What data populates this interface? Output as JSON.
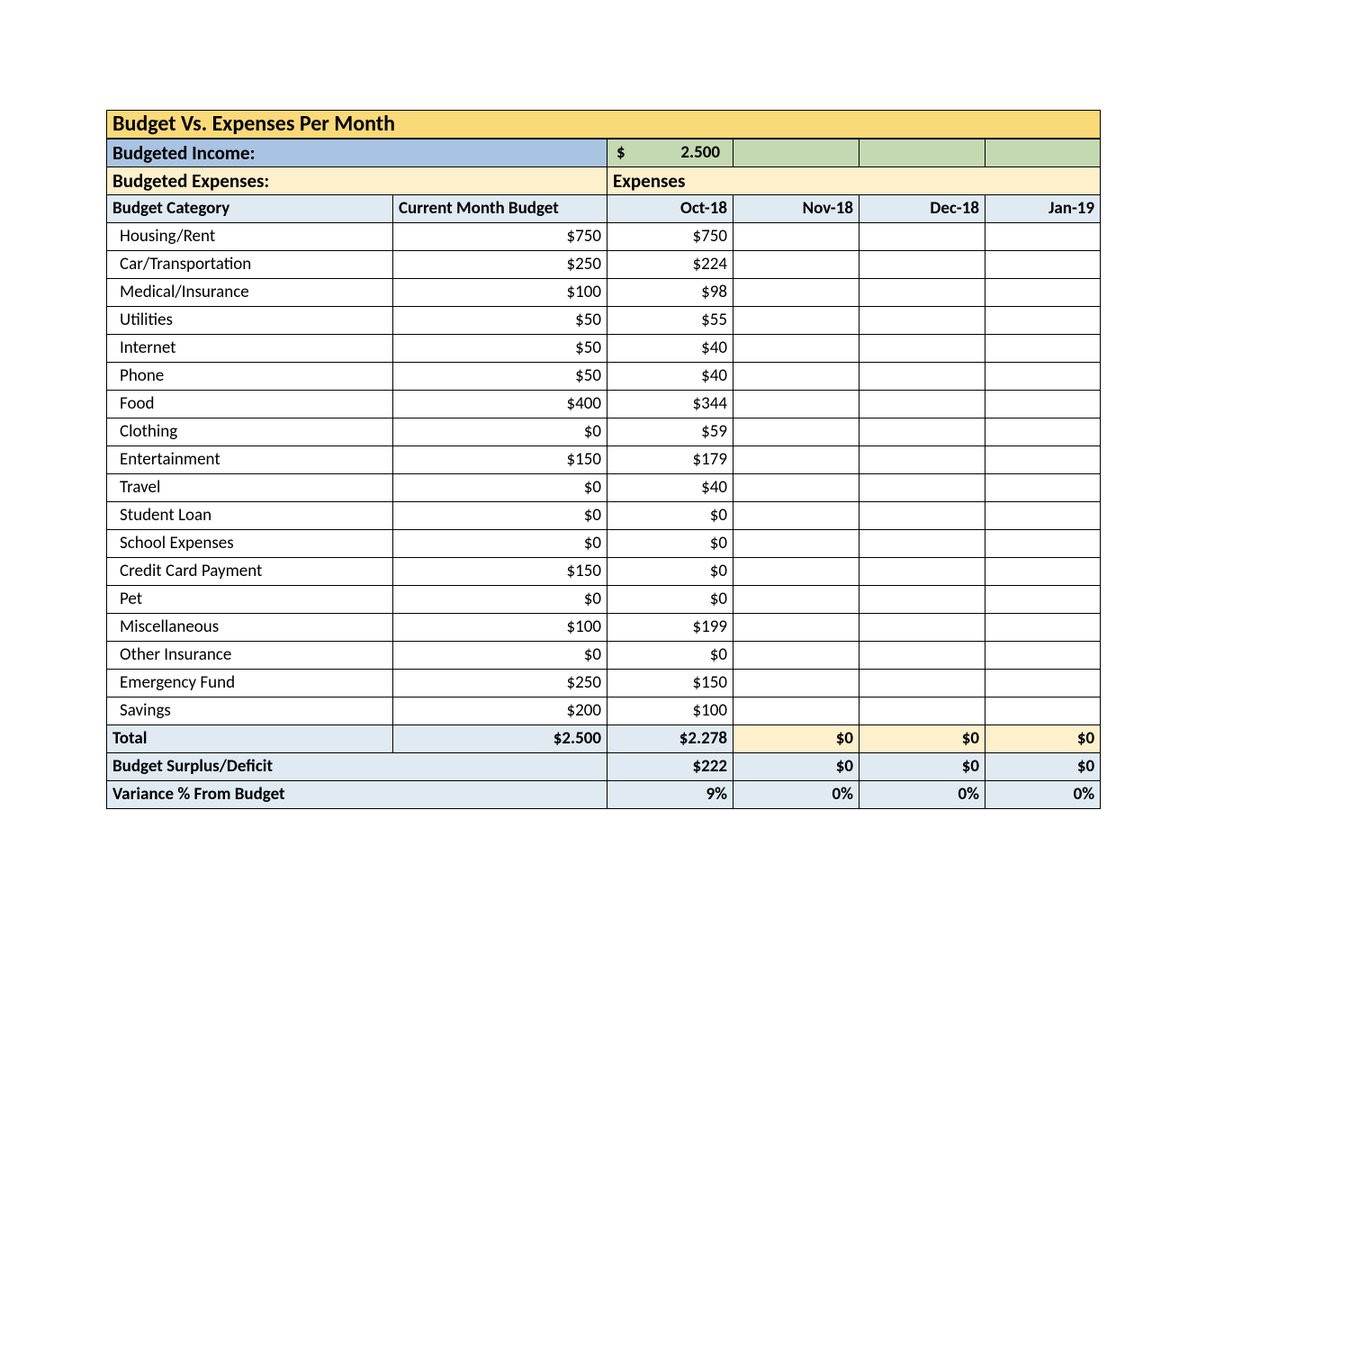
{
  "title": "Budget Vs. Expenses Per Month",
  "income": {
    "label": "Budgeted Income:",
    "currency": "$",
    "value": "2.500"
  },
  "expenses_header": {
    "left": "Budgeted Expenses:",
    "right": "Expenses"
  },
  "columns": {
    "category": "Budget Category",
    "budget": "Current Month Budget",
    "months": [
      "Oct-18",
      "Nov-18",
      "Dec-18",
      "Jan-19"
    ]
  },
  "rows": [
    {
      "category": "Housing/Rent",
      "budget": "$750",
      "m": [
        "$750",
        "",
        "",
        ""
      ]
    },
    {
      "category": "Car/Transportation",
      "budget": "$250",
      "m": [
        "$224",
        "",
        "",
        ""
      ]
    },
    {
      "category": "Medical/Insurance",
      "budget": "$100",
      "m": [
        "$98",
        "",
        "",
        ""
      ]
    },
    {
      "category": "Utilities",
      "budget": "$50",
      "m": [
        "$55",
        "",
        "",
        ""
      ]
    },
    {
      "category": "Internet",
      "budget": "$50",
      "m": [
        "$40",
        "",
        "",
        ""
      ]
    },
    {
      "category": "Phone",
      "budget": "$50",
      "m": [
        "$40",
        "",
        "",
        ""
      ]
    },
    {
      "category": "Food",
      "budget": "$400",
      "m": [
        "$344",
        "",
        "",
        ""
      ]
    },
    {
      "category": "Clothing",
      "budget": "$0",
      "m": [
        "$59",
        "",
        "",
        ""
      ]
    },
    {
      "category": "Entertainment",
      "budget": "$150",
      "m": [
        "$179",
        "",
        "",
        ""
      ]
    },
    {
      "category": "Travel",
      "budget": "$0",
      "m": [
        "$40",
        "",
        "",
        ""
      ]
    },
    {
      "category": "Student Loan",
      "budget": "$0",
      "m": [
        "$0",
        "",
        "",
        ""
      ]
    },
    {
      "category": "School Expenses",
      "budget": "$0",
      "m": [
        "$0",
        "",
        "",
        ""
      ]
    },
    {
      "category": "Credit Card Payment",
      "budget": "$150",
      "m": [
        "$0",
        "",
        "",
        ""
      ]
    },
    {
      "category": "Pet",
      "budget": "$0",
      "m": [
        "$0",
        "",
        "",
        ""
      ]
    },
    {
      "category": "Miscellaneous",
      "budget": "$100",
      "m": [
        "$199",
        "",
        "",
        ""
      ]
    },
    {
      "category": "Other Insurance",
      "budget": "$0",
      "m": [
        "$0",
        "",
        "",
        ""
      ]
    },
    {
      "category": "Emergency Fund",
      "budget": "$250",
      "m": [
        "$150",
        "",
        "",
        ""
      ]
    },
    {
      "category": "Savings",
      "budget": "$200",
      "m": [
        "$100",
        "",
        "",
        ""
      ]
    }
  ],
  "totals": {
    "label": "Total",
    "budget": "$2.500",
    "m": [
      "$2.278",
      "$0",
      "$0",
      "$0"
    ]
  },
  "surplus": {
    "label": "Budget Surplus/Deficit",
    "m": [
      "$222",
      "$0",
      "$0",
      "$0"
    ]
  },
  "variance": {
    "label": "Variance % From Budget",
    "m": [
      "9%",
      "0%",
      "0%",
      "0%"
    ]
  },
  "colors": {
    "title_bg": "#f9d978",
    "income_label_bg": "#a9c4e2",
    "income_value_bg": "#c4d8b2",
    "expenses_bg": "#fdf0cb",
    "header_bg": "#dfeaf3",
    "row_bg": "#ffffff",
    "border": "#000000"
  }
}
